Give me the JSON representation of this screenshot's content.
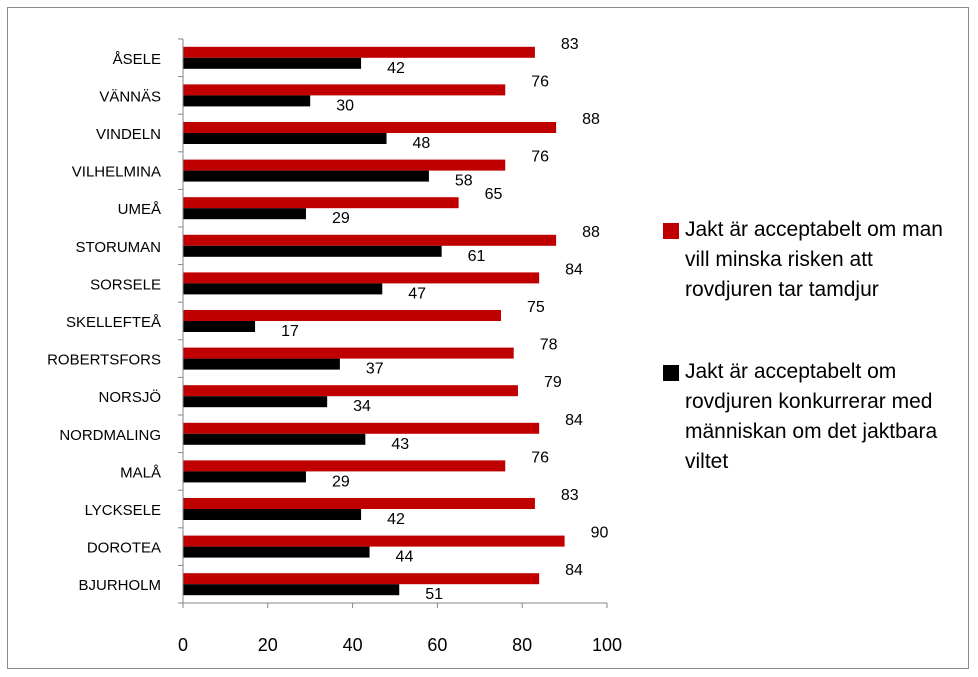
{
  "chart_data": {
    "type": "bar",
    "orientation": "horizontal",
    "categories": [
      "ÅSELE",
      "VÄNNÄS",
      "VINDELN",
      "VILHELMINA",
      "UMEÅ",
      "STORUMAN",
      "SORSELE",
      "SKELLEFTEÅ",
      "ROBERTSFORS",
      "NORSJÖ",
      "NORDMALING",
      "MALÅ",
      "LYCKSELE",
      "DOROTEA",
      "BJURHOLM"
    ],
    "series": [
      {
        "name": "Jakt är acceptabelt om man vill minska risken att rovdjuren tar tamdjur",
        "color": "#c00000",
        "values": [
          83,
          76,
          88,
          76,
          65,
          88,
          84,
          75,
          78,
          79,
          84,
          76,
          83,
          90,
          84
        ]
      },
      {
        "name": "Jakt är acceptabelt om rovdjuren konkurrerar med människan om det jaktbara viltet",
        "color": "#000000",
        "values": [
          42,
          30,
          48,
          58,
          29,
          61,
          47,
          17,
          37,
          34,
          43,
          29,
          42,
          44,
          51
        ]
      }
    ],
    "xlim": [
      0,
      100
    ],
    "xticks": [
      "0",
      "20",
      "40",
      "60",
      "80",
      "100"
    ],
    "grid": false,
    "legend_position": "right",
    "title": "",
    "xlabel": "",
    "ylabel": ""
  }
}
